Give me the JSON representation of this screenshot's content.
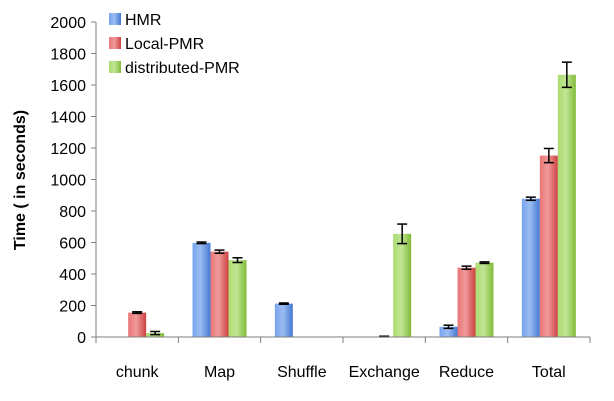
{
  "chart_data": {
    "type": "bar",
    "title": "",
    "xlabel": "",
    "ylabel": "Time ( in seconds)",
    "ylim": [
      0,
      2000
    ],
    "yticks": [
      0,
      200,
      400,
      600,
      800,
      1000,
      1200,
      1400,
      1600,
      1800,
      2000
    ],
    "categories": [
      "chunk",
      "Map",
      "Shuffle",
      "Exchange",
      "Reduce",
      "Total"
    ],
    "grid": false,
    "legend_position": "top-left",
    "series": [
      {
        "name": "HMR",
        "color": "#4a86e8",
        "values": [
          0,
          598,
          212,
          0,
          65,
          878
        ],
        "errors": [
          0,
          5,
          4,
          0,
          10,
          10
        ]
      },
      {
        "name": "Local-PMR",
        "color": "#e34848",
        "values": [
          155,
          542,
          0,
          3,
          440,
          1152
        ],
        "errors": [
          5,
          10,
          0,
          2,
          10,
          45
        ]
      },
      {
        "name": "distributed-PMR",
        "color": "#8fd03f",
        "values": [
          25,
          488,
          0,
          655,
          472,
          1665
        ],
        "errors": [
          10,
          15,
          0,
          62,
          5,
          80
        ]
      }
    ]
  }
}
